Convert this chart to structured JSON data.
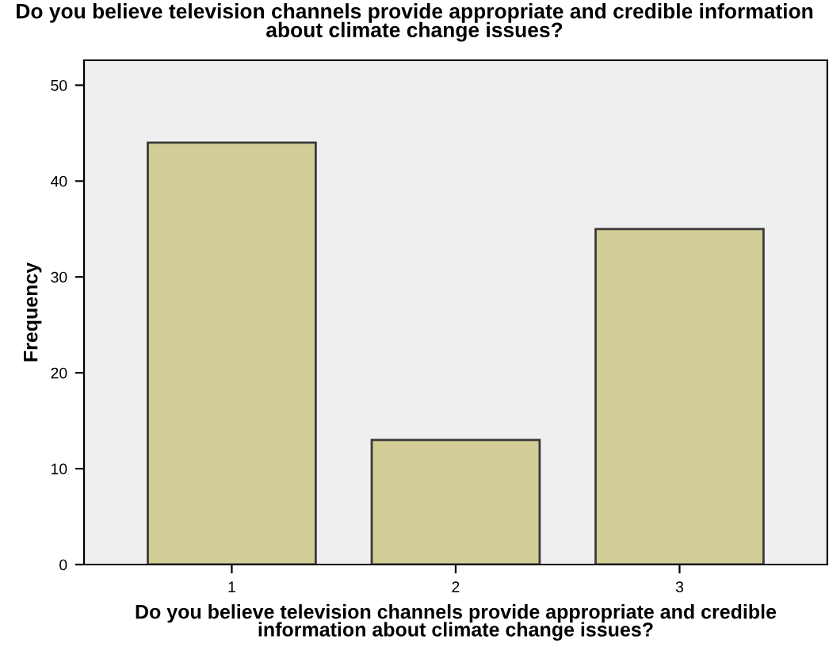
{
  "chart_data": {
    "type": "bar",
    "title": "Do you believe television channels provide appropriate and credible information\nabout climate change issues?",
    "xlabel": "Do you believe television channels provide appropriate and credible\ninformation about climate change issues?",
    "ylabel": "Frequency",
    "categories": [
      "1",
      "2",
      "3"
    ],
    "values": [
      44,
      13,
      35
    ],
    "color": "#d2cd96",
    "ylim": [
      0,
      52.6
    ],
    "yticks": [
      0,
      10,
      20,
      30,
      40,
      50
    ],
    "grid": false
  }
}
